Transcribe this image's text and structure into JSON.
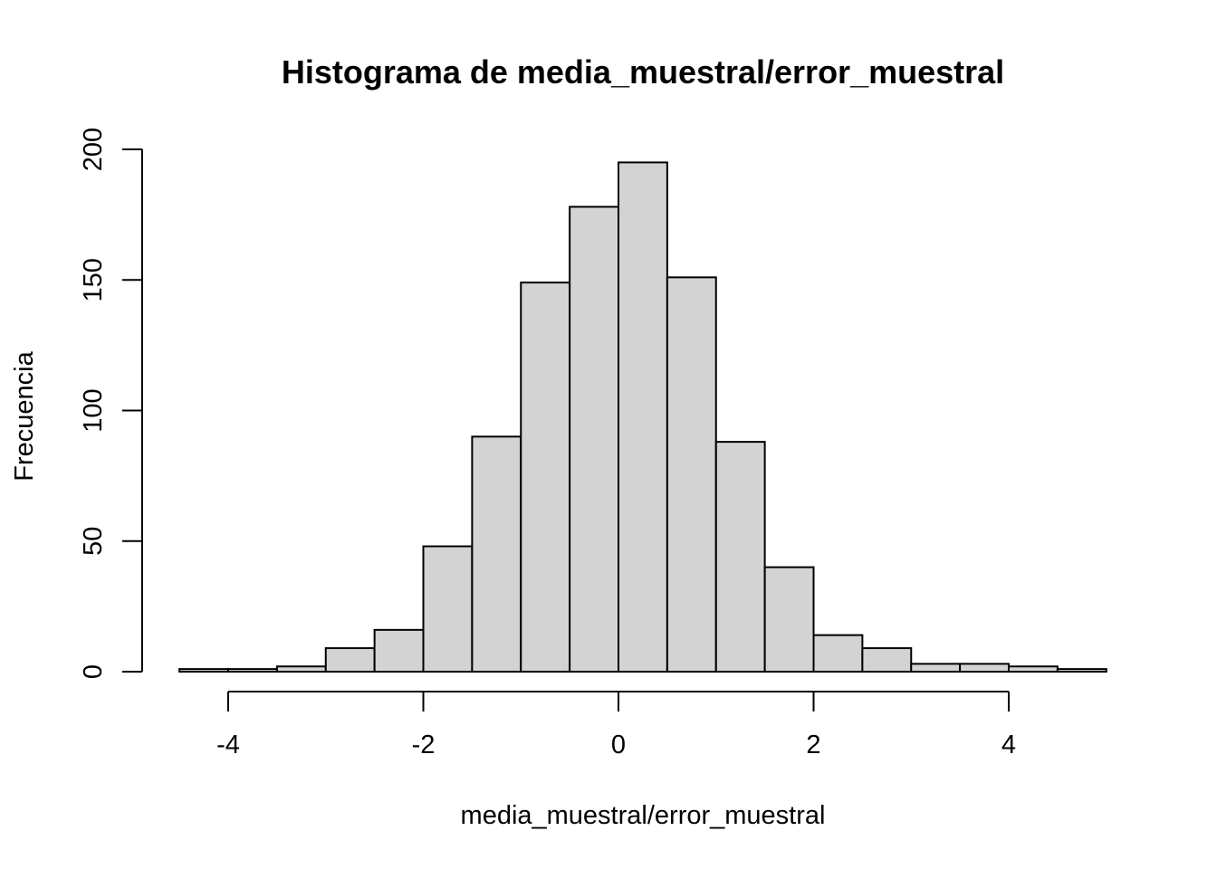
{
  "chart_data": {
    "type": "bar",
    "title": "Histograma de media_muestral/error_muestral",
    "xlabel": "media_muestral/error_muestral",
    "ylabel": "Frecuencia",
    "bin_edges": [
      -4.5,
      -4.0,
      -3.5,
      -3.0,
      -2.5,
      -2.0,
      -1.5,
      -1.0,
      -0.5,
      0.0,
      0.5,
      1.0,
      1.5,
      2.0,
      2.5,
      3.0,
      3.5,
      4.0,
      4.5,
      5.0
    ],
    "values": [
      1,
      1,
      2,
      9,
      16,
      48,
      90,
      149,
      178,
      195,
      151,
      88,
      40,
      14,
      9,
      3,
      3,
      2,
      1
    ],
    "xticks": [
      -4,
      -2,
      0,
      2,
      4
    ],
    "yticks": [
      0,
      50,
      100,
      150,
      200
    ],
    "xlim": [
      -4,
      4
    ],
    "ylim": [
      0,
      200
    ],
    "bar_color": "#d3d3d3",
    "border_color": "#000000",
    "grid": false,
    "legend": "none"
  }
}
